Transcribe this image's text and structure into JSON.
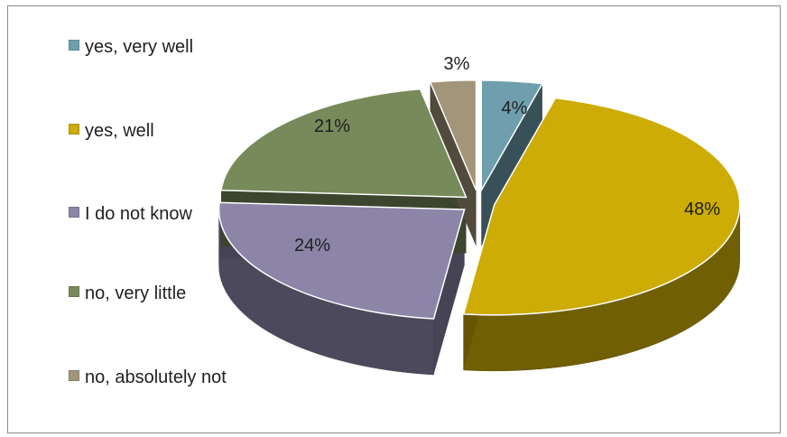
{
  "chart_data": {
    "type": "pie",
    "labels": [
      "yes, very well",
      "yes, well",
      "I do not know",
      "no, very little",
      "no, absolutely not"
    ],
    "values": [
      4,
      48,
      24,
      21,
      3
    ],
    "data_labels": [
      "4%",
      "48%",
      "24%",
      "21%",
      "3%"
    ],
    "colors": [
      "#6f9fae",
      "#ccac05",
      "#8c85a8",
      "#778a5a",
      "#a2957a"
    ],
    "legend_position": "left",
    "style": "3D exploded pie"
  }
}
